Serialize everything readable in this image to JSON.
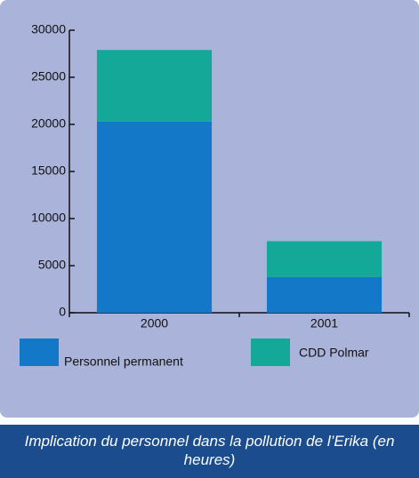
{
  "chart_data": {
    "type": "stacked_bar",
    "title": "Implication du personnel dans la pollution de l’Erika (en heures)",
    "categories": [
      "2000",
      "2001"
    ],
    "series": [
      {
        "name": "Personnel permanent",
        "color": "#1478c8",
        "values": [
          20300,
          3800
        ]
      },
      {
        "name": "CDD Polmar",
        "color": "#14a898",
        "values": [
          7600,
          3800
        ]
      }
    ],
    "ylim": [
      0,
      30000
    ],
    "yticks": [
      0,
      5000,
      10000,
      15000,
      20000,
      25000,
      30000
    ]
  }
}
